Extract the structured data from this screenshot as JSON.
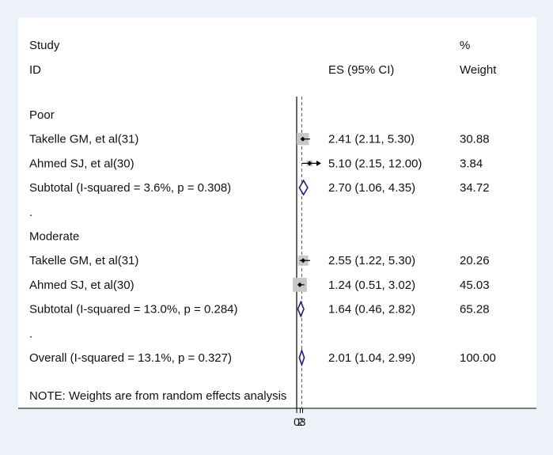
{
  "chart_data": {
    "type": "forest",
    "headers": {
      "study_line1": "Study",
      "study_line2": "ID",
      "es": "ES (95% CI)",
      "weight_line1": "%",
      "weight_line2": "Weight"
    },
    "x_tick_labels": [
      "0",
      "2",
      "3"
    ],
    "note": "NOTE: Weights are from random effects analysis",
    "rows": [
      {
        "kind": "group",
        "label": "Poor"
      },
      {
        "kind": "study",
        "label": "Takelle GM, et al(31)",
        "es": 2.41,
        "lo": 2.11,
        "hi": 5.3,
        "es_text": "2.41 (2.11, 5.30)",
        "weight": 30.88,
        "weight_text": "30.88"
      },
      {
        "kind": "study",
        "label": "Ahmed SJ, et al(30)",
        "es": 5.1,
        "lo": 2.15,
        "hi": 12.0,
        "es_text": "5.10 (2.15, 12.00)",
        "weight": 3.84,
        "weight_text": "3.84"
      },
      {
        "kind": "subtotal",
        "label": "Subtotal  (I-squared = 3.6%, p = 0.308)",
        "es": 2.7,
        "lo": 1.06,
        "hi": 4.35,
        "es_text": "2.70 (1.06, 4.35)",
        "weight": 34.72,
        "weight_text": "34.72"
      },
      {
        "kind": "spacer",
        "label": "."
      },
      {
        "kind": "group",
        "label": "Moderate"
      },
      {
        "kind": "study",
        "label": "Takelle GM, et al(31)",
        "es": 2.55,
        "lo": 1.22,
        "hi": 5.3,
        "es_text": "2.55 (1.22, 5.30)",
        "weight": 20.26,
        "weight_text": "20.26"
      },
      {
        "kind": "study",
        "label": "Ahmed SJ, et al(30)",
        "es": 1.24,
        "lo": 0.51,
        "hi": 3.02,
        "es_text": "1.24 (0.51, 3.02)",
        "weight": 45.03,
        "weight_text": "45.03"
      },
      {
        "kind": "subtotal",
        "label": "Subtotal  (I-squared = 13.0%, p = 0.284)",
        "es": 1.64,
        "lo": 0.46,
        "hi": 2.82,
        "es_text": "1.64 (0.46, 2.82)",
        "weight": 65.28,
        "weight_text": "65.28"
      },
      {
        "kind": "spacer",
        "label": "."
      },
      {
        "kind": "overall",
        "label": "Overall  (I-squared = 13.1%, p = 0.327)",
        "es": 2.01,
        "lo": 1.04,
        "hi": 2.99,
        "es_text": "2.01 (1.04, 2.99)",
        "weight": 100.0,
        "weight_text": "100.00"
      }
    ],
    "colors": {
      "background": "#ecf2f7",
      "plot_area": "#ffffff",
      "text": "#111111",
      "weight_box": "#c7c7c7",
      "diamond": "#1f1f8a",
      "reference_line": "#c0392b"
    }
  }
}
